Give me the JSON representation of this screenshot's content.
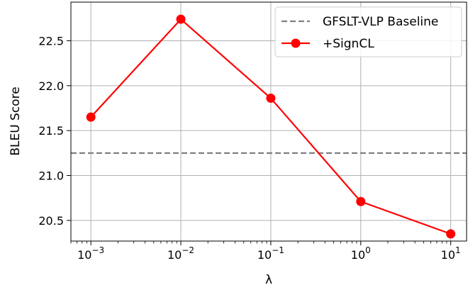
{
  "chart_data": {
    "type": "line",
    "xscale": "log",
    "xlabel": "λ",
    "ylabel": "BLEU Score",
    "xlim": [
      0.0006,
      15
    ],
    "ylim": [
      20.27,
      22.93
    ],
    "grid": true,
    "legend_position": "top-right",
    "x_ticks": [
      {
        "value": 0.001,
        "base": "10",
        "exp": "−3"
      },
      {
        "value": 0.01,
        "base": "10",
        "exp": "−2"
      },
      {
        "value": 0.1,
        "base": "10",
        "exp": "−1"
      },
      {
        "value": 1,
        "base": "10",
        "exp": "0"
      },
      {
        "value": 10,
        "base": "10",
        "exp": "1"
      }
    ],
    "y_ticks": [
      {
        "value": 20.5,
        "label": "20.5"
      },
      {
        "value": 21.0,
        "label": "21.0"
      },
      {
        "value": 21.5,
        "label": "21.5"
      },
      {
        "value": 22.0,
        "label": "22.0"
      },
      {
        "value": 22.5,
        "label": "22.5"
      }
    ],
    "baseline": {
      "name": "GFSLT-VLP Baseline",
      "value": 21.25,
      "color": "#808080",
      "style": "dashed"
    },
    "series": [
      {
        "name": "+SignCL",
        "color": "#ff0000",
        "x": [
          0.001,
          0.01,
          0.1,
          1,
          10
        ],
        "y": [
          21.65,
          22.74,
          21.86,
          20.71,
          20.35
        ]
      }
    ]
  }
}
